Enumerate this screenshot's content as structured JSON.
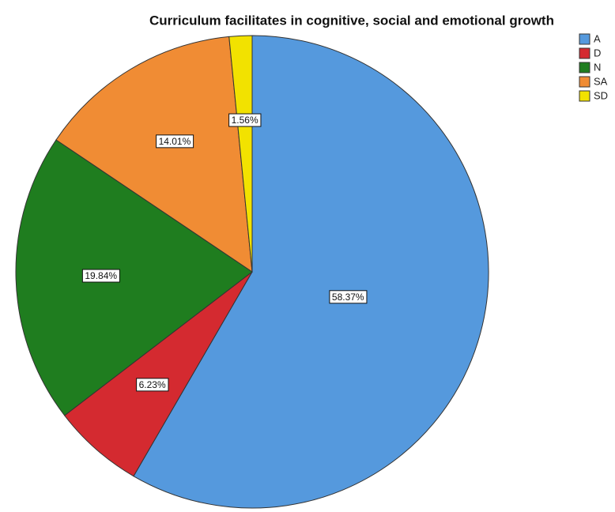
{
  "chart_data": {
    "type": "pie",
    "title": "Curriculum facilitates in cognitive, social and emotional growth",
    "categories": [
      "A",
      "D",
      "N",
      "SA",
      "SD"
    ],
    "values": [
      58.37,
      6.23,
      19.84,
      14.01,
      1.56
    ],
    "value_labels": [
      "58.37%",
      "6.23%",
      "19.84%",
      "14.01%",
      "1.56%"
    ],
    "colors": [
      "#5599dd",
      "#d42a30",
      "#1f7d1f",
      "#f08c34",
      "#f2e200"
    ],
    "legend": "upper right"
  }
}
